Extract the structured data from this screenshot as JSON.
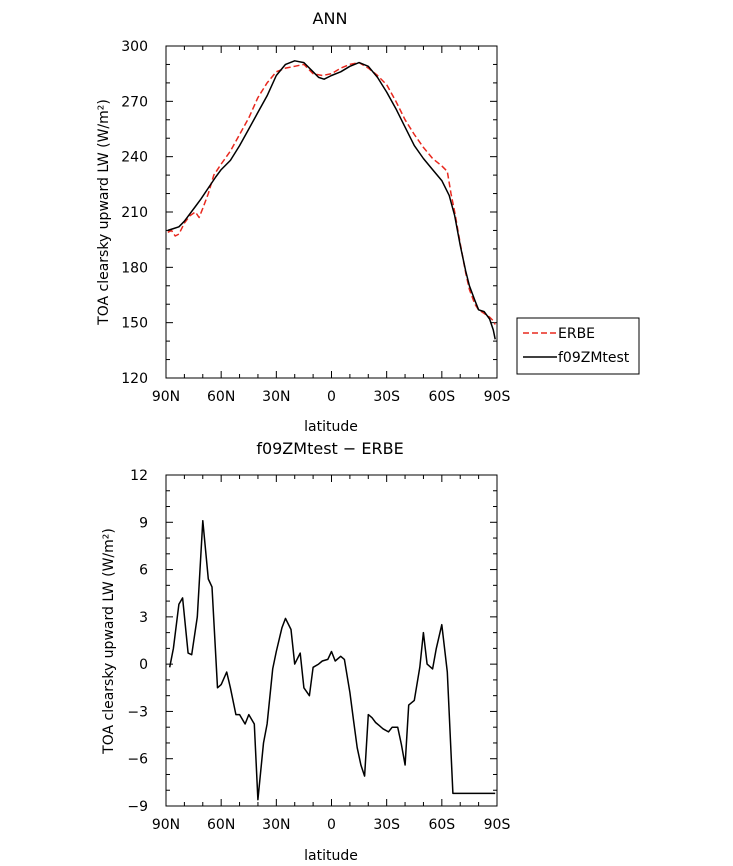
{
  "chart_data": [
    {
      "type": "line",
      "title": "ANN",
      "xlabel": "latitude",
      "ylabel": "TOA clearsky upward LW (W/m²)",
      "xlim": [
        90,
        -90
      ],
      "ylim": [
        120,
        300
      ],
      "x_ticks": [
        90,
        60,
        30,
        0,
        -30,
        -60,
        -90
      ],
      "x_tick_labels": [
        "90N",
        "60N",
        "30N",
        "0",
        "30S",
        "60S",
        "90S"
      ],
      "y_ticks": [
        120,
        150,
        180,
        210,
        240,
        270,
        300
      ],
      "y_tick_labels": [
        "120",
        "150",
        "180",
        "210",
        "240",
        "270",
        "300"
      ],
      "legend_position": "right",
      "series": [
        {
          "name": "ERBE",
          "color": "#e8281e",
          "dash": "dashed",
          "x": [
            89,
            87,
            85,
            83,
            80,
            77,
            74,
            72,
            70,
            67,
            64,
            60,
            55,
            50,
            45,
            40,
            35,
            30,
            25,
            20,
            15,
            10,
            5,
            0,
            -5,
            -10,
            -15,
            -20,
            -25,
            -30,
            -35,
            -40,
            -45,
            -50,
            -55,
            -60,
            -63,
            -65,
            -67,
            -70,
            -73,
            -75,
            -78,
            -80,
            -83,
            -86,
            -88,
            -89
          ],
          "y": [
            199,
            200,
            197,
            198,
            204,
            208,
            210,
            207,
            212,
            220,
            230,
            236,
            243,
            252,
            261,
            272,
            280,
            286,
            288,
            289,
            290,
            285,
            284,
            285,
            288,
            290,
            291,
            288,
            284,
            279,
            270,
            260,
            252,
            245,
            239,
            235,
            232,
            220,
            210,
            193,
            177,
            168,
            160,
            157,
            155,
            153,
            151,
            149
          ]
        },
        {
          "name": "f09ZMtest",
          "color": "#000000",
          "dash": "solid",
          "x": [
            89,
            86,
            83,
            80,
            77,
            74,
            71,
            67,
            63,
            60,
            55,
            50,
            45,
            40,
            35,
            30,
            25,
            20,
            15,
            10,
            7,
            4,
            0,
            -5,
            -10,
            -15,
            -20,
            -25,
            -30,
            -35,
            -40,
            -45,
            -50,
            -55,
            -60,
            -64,
            -67,
            -70,
            -73,
            -75,
            -78,
            -80,
            -83,
            -86,
            -88,
            -89
          ],
          "y": [
            200,
            201,
            202,
            205,
            209,
            213,
            217,
            223,
            229,
            233,
            238,
            246,
            255,
            264,
            273,
            284,
            290,
            292,
            291,
            286,
            283,
            282,
            284,
            286,
            289,
            291,
            289,
            283,
            275,
            266,
            256,
            246,
            239,
            233,
            227,
            219,
            208,
            192,
            178,
            170,
            162,
            157,
            156,
            152,
            146,
            141
          ]
        }
      ]
    },
    {
      "type": "line",
      "title": "f09ZMtest − ERBE",
      "xlabel": "latitude",
      "ylabel": "TOA clearsky upward LW (W/m²)",
      "xlim": [
        90,
        -90
      ],
      "ylim": [
        -9,
        12
      ],
      "x_ticks": [
        90,
        60,
        30,
        0,
        -30,
        -60,
        -90
      ],
      "x_tick_labels": [
        "90N",
        "60N",
        "30N",
        "0",
        "30S",
        "60S",
        "90S"
      ],
      "y_ticks": [
        -9,
        -6,
        -3,
        0,
        3,
        6,
        9,
        12
      ],
      "y_tick_labels": [
        "−9",
        "−6",
        "−3",
        "0",
        "3",
        "6",
        "9",
        "12"
      ],
      "series": [
        {
          "color": "#000000",
          "dash": "solid",
          "x": [
            88,
            86,
            83,
            81,
            78,
            76,
            73,
            70,
            67,
            65,
            62,
            60,
            57,
            55,
            52,
            50,
            47,
            45,
            42,
            40,
            37,
            35,
            32,
            30,
            27,
            25,
            22,
            20,
            17,
            15,
            12,
            10,
            7,
            5,
            2,
            0,
            -2,
            -5,
            -7,
            -10,
            -12,
            -14,
            -16,
            -18,
            -20,
            -22,
            -24,
            -26,
            -28,
            -31,
            -33,
            -36,
            -38,
            -40,
            -42,
            -45,
            -48,
            -50,
            -52,
            -55,
            -57,
            -60,
            -63,
            -66,
            -68,
            -70,
            -72,
            -75,
            -77,
            -79,
            -81,
            -84,
            -86,
            -88,
            -89
          ],
          "y": [
            -0.2,
            1.0,
            3.8,
            4.2,
            0.7,
            0.6,
            3.0,
            9.1,
            5.4,
            4.9,
            -1.5,
            -1.3,
            -0.5,
            -1.5,
            -3.2,
            -3.2,
            -3.8,
            -3.2,
            -3.8,
            -8.6,
            -5.0,
            -3.8,
            -0.3,
            0.8,
            2.3,
            2.9,
            2.2,
            0.0,
            0.7,
            -1.5,
            -2.0,
            -0.2,
            0.0,
            0.2,
            0.3,
            0.8,
            0.2,
            0.5,
            0.3,
            -1.8,
            -3.6,
            -5.3,
            -6.4,
            -7.1,
            -3.2,
            -3.4,
            -3.7,
            -3.9,
            -4.1,
            -4.3,
            -4.0,
            -4.0,
            -5.1,
            -6.4,
            -2.6,
            -2.3,
            -0.2,
            2.0,
            0.0,
            -0.3,
            1.0,
            2.5,
            -0.5,
            -8.2,
            -8.2,
            -8.2,
            -8.2,
            -8.2,
            -8.2,
            -8.2,
            -8.2,
            -8.2,
            -8.2,
            -8.2,
            -8.2
          ]
        }
      ]
    }
  ]
}
